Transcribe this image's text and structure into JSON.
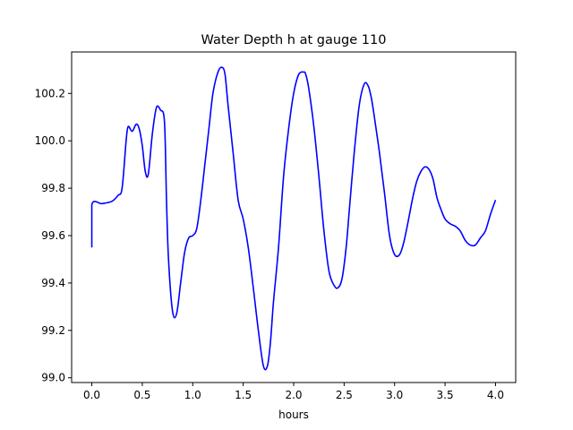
{
  "chart_data": {
    "type": "line",
    "title": "Water Depth h at gauge 110",
    "xlabel": "hours",
    "ylabel": "",
    "xlim": [
      -0.2,
      4.2
    ],
    "ylim": [
      98.98,
      100.375
    ],
    "xticks": [
      0.0,
      0.5,
      1.0,
      1.5,
      2.0,
      2.5,
      3.0,
      3.5,
      4.0
    ],
    "xtick_labels": [
      "0.0",
      "0.5",
      "1.0",
      "1.5",
      "2.0",
      "2.5",
      "3.0",
      "3.5",
      "4.0"
    ],
    "yticks": [
      99.0,
      99.2,
      99.4,
      99.6,
      99.8,
      100.0,
      100.2
    ],
    "ytick_labels": [
      "99.0",
      "99.2",
      "99.4",
      "99.6",
      "99.8",
      "100.0",
      "100.2"
    ],
    "grid": false,
    "series": [
      {
        "color": "#0000ff",
        "x": [
          0.0,
          0.0,
          0.1,
          0.2,
          0.26,
          0.3,
          0.34,
          0.36,
          0.4,
          0.44,
          0.47,
          0.5,
          0.53,
          0.56,
          0.6,
          0.64,
          0.68,
          0.72,
          0.74,
          0.76,
          0.8,
          0.84,
          0.88,
          0.92,
          0.96,
          1.0,
          1.04,
          1.08,
          1.12,
          1.16,
          1.2,
          1.25,
          1.29,
          1.32,
          1.35,
          1.4,
          1.45,
          1.5,
          1.55,
          1.6,
          1.65,
          1.7,
          1.74,
          1.77,
          1.8,
          1.85,
          1.9,
          1.95,
          2.0,
          2.05,
          2.1,
          2.12,
          2.15,
          2.2,
          2.25,
          2.3,
          2.35,
          2.4,
          2.44,
          2.48,
          2.52,
          2.55,
          2.6,
          2.65,
          2.7,
          2.74,
          2.77,
          2.8,
          2.85,
          2.9,
          2.95,
          3.0,
          3.05,
          3.09,
          3.13,
          3.18,
          3.22,
          3.26,
          3.3,
          3.34,
          3.38,
          3.42,
          3.46,
          3.5,
          3.55,
          3.6,
          3.65,
          3.7,
          3.75,
          3.8,
          3.85,
          3.9,
          3.95,
          4.0
        ],
        "y": [
          99.55,
          99.73,
          99.735,
          99.745,
          99.77,
          99.8,
          100.0,
          100.06,
          100.04,
          100.07,
          100.05,
          99.98,
          99.87,
          99.86,
          100.03,
          100.14,
          100.13,
          100.08,
          99.75,
          99.5,
          99.28,
          99.27,
          99.4,
          99.53,
          99.59,
          99.6,
          99.63,
          99.75,
          99.9,
          100.05,
          100.2,
          100.29,
          100.31,
          100.28,
          100.15,
          99.95,
          99.75,
          99.67,
          99.55,
          99.38,
          99.2,
          99.05,
          99.05,
          99.15,
          99.32,
          99.55,
          99.85,
          100.05,
          100.2,
          100.28,
          100.29,
          100.28,
          100.22,
          100.06,
          99.85,
          99.62,
          99.45,
          99.39,
          99.38,
          99.42,
          99.55,
          99.7,
          99.95,
          100.15,
          100.24,
          100.23,
          100.18,
          100.1,
          99.95,
          99.78,
          99.6,
          99.52,
          99.52,
          99.57,
          99.65,
          99.76,
          99.83,
          99.87,
          99.89,
          99.88,
          99.84,
          99.76,
          99.71,
          99.67,
          99.65,
          99.64,
          99.62,
          99.58,
          99.56,
          99.56,
          99.59,
          99.62,
          99.69,
          99.75
        ]
      }
    ]
  }
}
